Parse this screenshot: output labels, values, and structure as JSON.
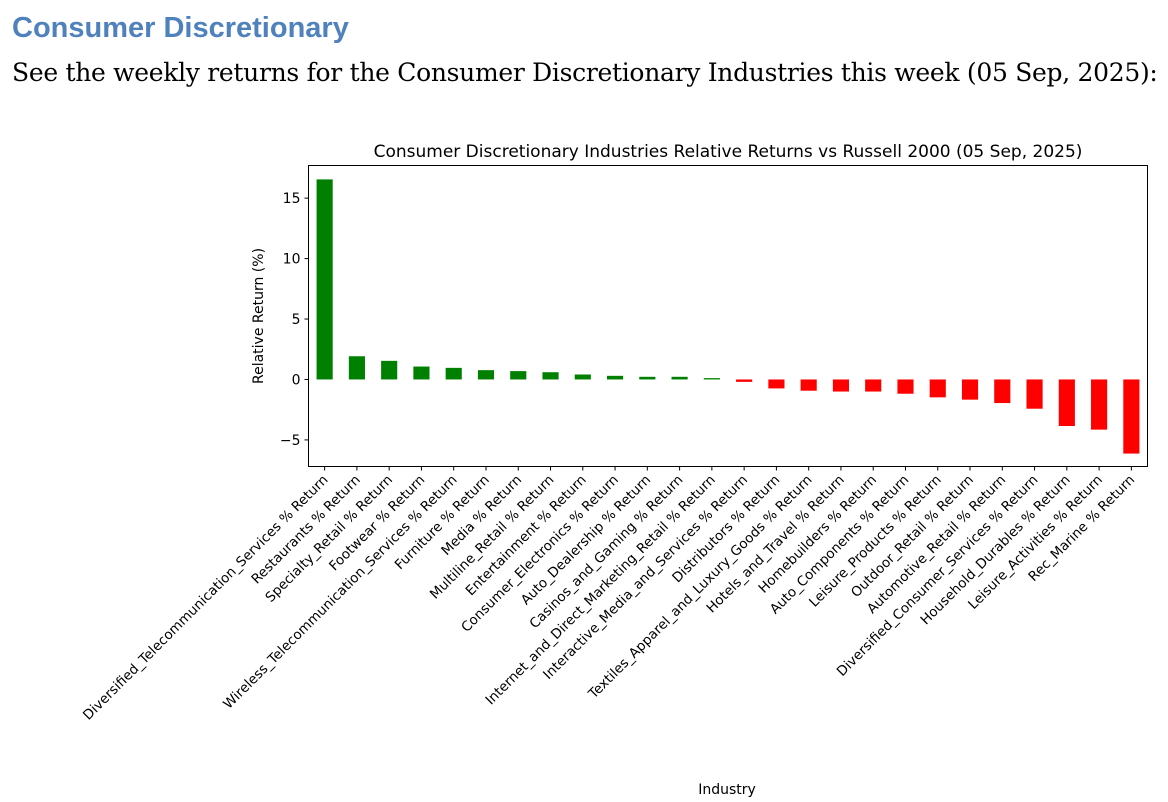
{
  "heading": "Consumer Discretionary",
  "intro": "See the weekly returns for the Consumer Discretionary Industries this week (05 Sep, 2025):",
  "chart_data": {
    "type": "bar",
    "title": "Consumer Discretionary Industries Relative Returns vs Russell 2000 (05 Sep, 2025)",
    "xlabel": "Industry",
    "ylabel": "Relative Return (%)",
    "ylim": [
      -7.2,
      17.7
    ],
    "yticks": [
      -5,
      0,
      5,
      10,
      15
    ],
    "positive_color": "#008000",
    "negative_color": "#ff0000",
    "categories": [
      "Diversified_Telecommunication_Services % Return",
      "Restaurants % Return",
      "Specialty_Retail % Return",
      "Footwear % Return",
      "Wireless_Telecommunication_Services % Return",
      "Furniture % Return",
      "Media % Return",
      "Multiline_Retail % Return",
      "Entertainment % Return",
      "Consumer_Electronics % Return",
      "Auto_Dealership % Return",
      "Casinos_and_Gaming % Return",
      "Internet_and_Direct_Marketing_Retail % Return",
      "Interactive_Media_and_Services % Return",
      "Distributors % Return",
      "Textiles_Apparel_and_Luxury_Goods % Return",
      "Hotels_and_Travel % Return",
      "Homebuilders % Return",
      "Auto_Components % Return",
      "Leisure_Products % Return",
      "Outdoor_Retail % Return",
      "Automotive_Retail % Return",
      "Diversified_Consumer_Services % Return",
      "Household_Durables % Return",
      "Leisure_Activities % Return",
      "Rec_Marine % Return"
    ],
    "values": [
      16.55,
      1.92,
      1.54,
      1.07,
      0.96,
      0.77,
      0.69,
      0.6,
      0.41,
      0.3,
      0.22,
      0.22,
      0.11,
      -0.2,
      -0.74,
      -0.93,
      -1.0,
      -1.0,
      -1.18,
      -1.48,
      -1.67,
      -1.95,
      -2.42,
      -3.85,
      -4.15,
      -6.13
    ]
  }
}
